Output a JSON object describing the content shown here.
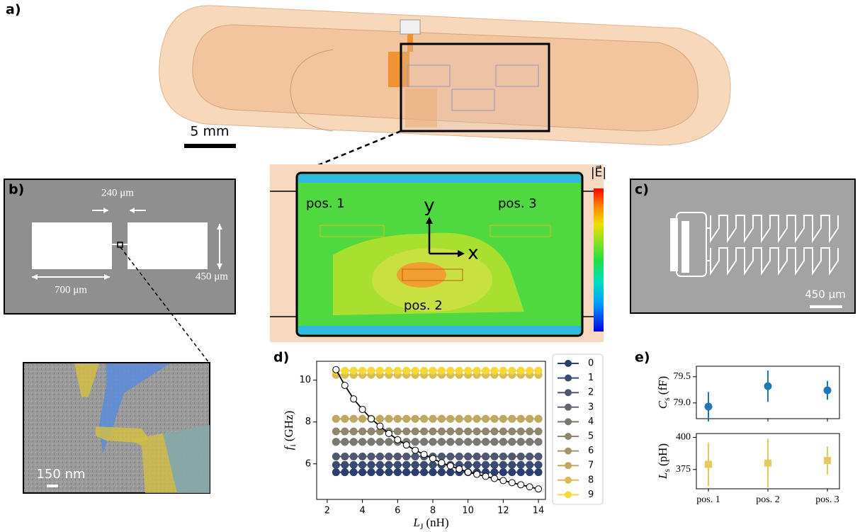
{
  "panel_labels": [
    "a)",
    "b)",
    "c)",
    "d)",
    "e)"
  ],
  "panel_a": {
    "scale_bar": "5 mm"
  },
  "panel_b": {
    "gap": "240 μm",
    "width": "700 μm",
    "height": "450 μm",
    "inset_scale_bar": "150 nm"
  },
  "field_map": {
    "colorbar_label": "|E⃗|",
    "axis_y": "y",
    "axis_x": "x",
    "positions": [
      "pos. 1",
      "pos. 2",
      "pos. 3"
    ]
  },
  "panel_c": {
    "scale_bar": "450 μm"
  },
  "chart_data": [
    {
      "type": "line",
      "xlabel": {
        "symbol": "L",
        "subscript": "J",
        "unit": "(nH)"
      },
      "ylabel": {
        "symbol": "f",
        "subscript": "i",
        "unit": "(GHz)"
      },
      "x": [
        2.5,
        3,
        3.5,
        4,
        4.5,
        5,
        5.5,
        6,
        6.5,
        7,
        7.5,
        8,
        8.5,
        9,
        9.5,
        10,
        10.5,
        11,
        11.5,
        12,
        12.5,
        13,
        13.5,
        14
      ],
      "series": [
        {
          "name": "0",
          "color": "#2c3e6e",
          "values": [
            5.6,
            5.6,
            5.6,
            5.6,
            5.6,
            5.6,
            5.6,
            5.6,
            5.6,
            5.6,
            5.6,
            5.6,
            5.6,
            5.6,
            5.6,
            5.6,
            5.6,
            5.6,
            5.6,
            5.6,
            5.6,
            5.6,
            5.6,
            5.6
          ]
        },
        {
          "name": "1",
          "color": "#3a4a70",
          "values": [
            5.95,
            5.95,
            5.95,
            5.95,
            5.95,
            5.95,
            5.95,
            5.95,
            5.95,
            5.95,
            5.95,
            5.95,
            5.95,
            5.95,
            5.95,
            5.95,
            5.95,
            5.95,
            5.95,
            5.95,
            5.95,
            5.95,
            5.95,
            5.95
          ]
        },
        {
          "name": "2",
          "color": "#4f5870",
          "values": [
            6.35,
            6.35,
            6.35,
            6.35,
            6.35,
            6.35,
            6.35,
            6.35,
            6.35,
            6.35,
            6.35,
            6.35,
            6.35,
            6.35,
            6.35,
            6.35,
            6.35,
            6.35,
            6.35,
            6.35,
            6.35,
            6.35,
            6.35,
            6.35
          ]
        },
        {
          "name": "3",
          "color": "#636670",
          "values": [
            7.05,
            7.05,
            7.05,
            7.05,
            7.05,
            7.05,
            7.05,
            7.05,
            7.05,
            7.05,
            7.05,
            7.05,
            7.05,
            7.05,
            7.05,
            7.05,
            7.05,
            7.05,
            7.05,
            7.05,
            7.05,
            7.05,
            7.05,
            7.05
          ]
        },
        {
          "name": "4",
          "color": "#7a7870",
          "values": [
            7.05,
            7.05,
            7.05,
            7.05,
            7.05,
            7.05,
            7.05,
            7.05,
            7.05,
            7.05,
            7.05,
            7.05,
            7.05,
            7.05,
            7.05,
            7.05,
            7.05,
            7.05,
            7.05,
            7.05,
            7.05,
            7.05,
            7.05,
            7.05
          ]
        },
        {
          "name": "5",
          "color": "#8e876e",
          "values": [
            7.55,
            7.55,
            7.55,
            7.55,
            7.55,
            7.55,
            7.55,
            7.55,
            7.55,
            7.55,
            7.55,
            7.55,
            7.55,
            7.55,
            7.55,
            7.55,
            7.55,
            7.55,
            7.55,
            7.55,
            7.55,
            7.55,
            7.55,
            7.55
          ]
        },
        {
          "name": "6",
          "color": "#a5976a",
          "values": [
            8.15,
            8.15,
            8.15,
            8.15,
            8.15,
            8.15,
            8.15,
            8.15,
            8.15,
            8.15,
            8.15,
            8.15,
            8.15,
            8.15,
            8.15,
            8.15,
            8.15,
            8.15,
            8.15,
            8.15,
            8.15,
            8.15,
            8.15,
            8.15
          ]
        },
        {
          "name": "7",
          "color": "#bfa961",
          "values": [
            8.15,
            8.15,
            8.15,
            8.15,
            8.15,
            8.15,
            8.15,
            8.15,
            8.15,
            8.15,
            8.15,
            8.15,
            8.15,
            8.15,
            8.15,
            8.15,
            8.15,
            8.15,
            8.15,
            8.15,
            8.15,
            8.15,
            8.15,
            8.15
          ]
        },
        {
          "name": "8",
          "color": "#d9bd52",
          "values": [
            10.25,
            10.25,
            10.25,
            10.25,
            10.25,
            10.25,
            10.25,
            10.25,
            10.25,
            10.25,
            10.25,
            10.25,
            10.25,
            10.25,
            10.25,
            10.25,
            10.25,
            10.25,
            10.25,
            10.25,
            10.25,
            10.25,
            10.25,
            10.25
          ]
        },
        {
          "name": "9",
          "color": "#f5d93a",
          "values": [
            10.45,
            10.45,
            10.45,
            10.45,
            10.45,
            10.45,
            10.45,
            10.45,
            10.45,
            10.45,
            10.45,
            10.45,
            10.45,
            10.45,
            10.45,
            10.45,
            10.45,
            10.45,
            10.45,
            10.45,
            10.45,
            10.45,
            10.45,
            10.45
          ]
        },
        {
          "color": "#000000",
          "marker_fill": "#ffffff",
          "values": [
            10.5,
            9.75,
            9.1,
            8.6,
            8.15,
            7.8,
            7.45,
            7.15,
            6.9,
            6.65,
            6.45,
            6.25,
            6.05,
            5.9,
            5.75,
            5.6,
            5.5,
            5.4,
            5.3,
            5.2,
            5.1,
            5.0,
            4.9,
            4.8
          ]
        }
      ],
      "xlim": [
        1.4,
        14.4
      ],
      "ylim": [
        4.3,
        10.9
      ],
      "xticks": [
        2,
        4,
        6,
        8,
        10,
        12,
        14
      ],
      "yticks": [
        6,
        8,
        10
      ],
      "legend": "outside right"
    },
    {
      "type": "errorbar",
      "ylabel": {
        "symbol": "C",
        "subscript": "s",
        "unit": "(fF)"
      },
      "values": [
        78.93,
        79.32,
        79.24
      ],
      "errors": [
        0.28,
        0.3,
        0.18
      ],
      "color": "#1f77b4",
      "marker": "circle",
      "ylim": [
        78.7,
        79.7
      ],
      "yticks": [
        {
          "value": 79,
          "label": "79.0"
        },
        79.5
      ]
    },
    {
      "type": "errorbar",
      "ylabel": {
        "symbol": "L",
        "subscript": "s",
        "unit": "(pH)"
      },
      "categories": [
        "pos. 1",
        "pos. 2",
        "pos. 3"
      ],
      "values": [
        379,
        380,
        382
      ],
      "errors": [
        17,
        19,
        11
      ],
      "color": "#e3cb5c",
      "marker": "square",
      "ylim": [
        360,
        403
      ],
      "yticks": [
        375,
        400
      ]
    }
  ]
}
